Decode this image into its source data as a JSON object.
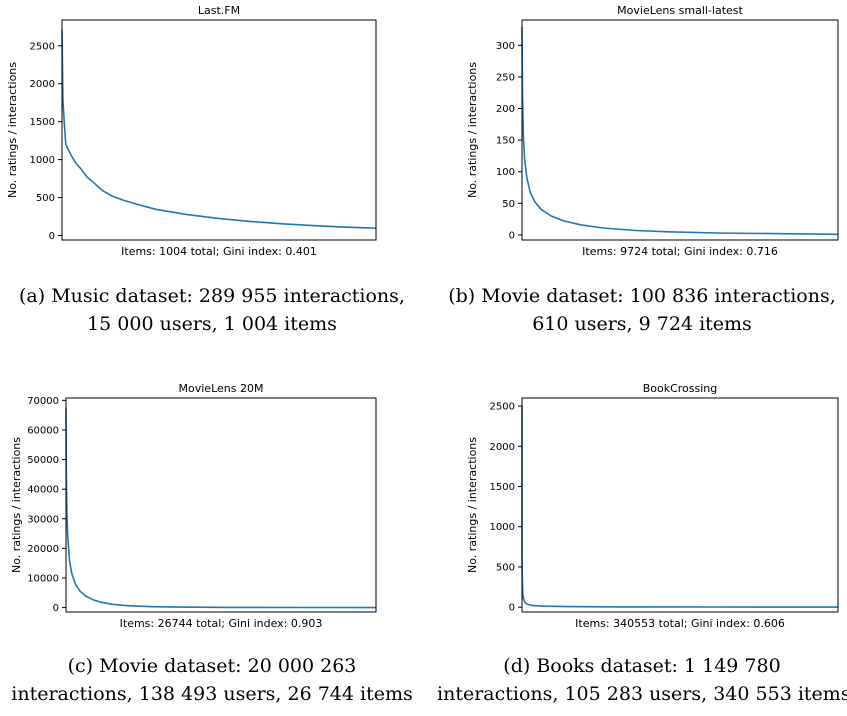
{
  "charts": [
    {
      "caption_line1": "(a) Music dataset: 289 955 interactions,",
      "caption_line2": "15 000 users, 1 004 items"
    },
    {
      "caption_line1": "(b) Movie dataset: 100 836 interactions,",
      "caption_line2": "610 users, 9 724 items"
    },
    {
      "caption_line1": "(c) Movie dataset: 20 000 263",
      "caption_line2": "interactions, 138 493 users, 26 744 items"
    },
    {
      "caption_line1": "(d) Books dataset: 1 149 780",
      "caption_line2": "interactions, 105 283 users, 340 553 items"
    }
  ],
  "chart_data": [
    {
      "type": "line",
      "title": "Last.FM",
      "xlabel": "Items: 1004 total; Gini index: 0.401",
      "ylabel": "No. ratings / interactions",
      "grid": false,
      "xlim": [
        0,
        1004
      ],
      "ylim": [
        -60,
        2840
      ],
      "yticks": [
        0,
        500,
        1000,
        1500,
        2000,
        2500
      ],
      "series": [
        {
          "color": "#1f77b4",
          "x": [
            0,
            3,
            7,
            12,
            20,
            30,
            45,
            60,
            80,
            100,
            130,
            160,
            200,
            250,
            300,
            400,
            500,
            600,
            700,
            800,
            900,
            1004
          ],
          "y": [
            2710,
            1800,
            1500,
            1200,
            1130,
            1050,
            950,
            880,
            770,
            700,
            590,
            520,
            460,
            400,
            345,
            275,
            225,
            185,
            155,
            130,
            110,
            95
          ]
        }
      ]
    },
    {
      "type": "line",
      "title": "MovieLens small-latest",
      "xlabel": "Items: 9724 total; Gini index: 0.716",
      "ylabel": "No. ratings / interactions",
      "grid": false,
      "xlim": [
        0,
        9724
      ],
      "ylim": [
        -8,
        340
      ],
      "yticks": [
        0,
        50,
        100,
        150,
        200,
        250,
        300
      ],
      "series": [
        {
          "color": "#1f77b4",
          "x": [
            0,
            15,
            40,
            80,
            150,
            250,
            400,
            600,
            900,
            1300,
            1800,
            2500,
            3500,
            4500,
            6000,
            8000,
            9724
          ],
          "y": [
            329,
            220,
            160,
            120,
            90,
            68,
            52,
            40,
            30,
            22,
            16,
            11,
            7,
            5,
            3,
            2,
            1
          ]
        }
      ]
    },
    {
      "type": "line",
      "title": "MovieLens 20M",
      "xlabel": "Items: 26744 total; Gini index: 0.903",
      "ylabel": "No. ratings / interactions",
      "grid": false,
      "xlim": [
        0,
        26744
      ],
      "ylim": [
        -1500,
        70800
      ],
      "yticks": [
        0,
        10000,
        20000,
        30000,
        40000,
        50000,
        60000,
        70000
      ],
      "series": [
        {
          "color": "#1f77b4",
          "x": [
            0,
            30,
            80,
            150,
            300,
            500,
            800,
            1200,
            1700,
            2300,
            3000,
            4000,
            5500,
            7500,
            10000,
            14000,
            20000,
            26744
          ],
          "y": [
            67300,
            45000,
            32000,
            24000,
            16000,
            11500,
            8000,
            5600,
            3900,
            2700,
            1800,
            1100,
            600,
            300,
            150,
            50,
            10,
            1
          ]
        }
      ]
    },
    {
      "type": "line",
      "title": "BookCrossing",
      "xlabel": "Items: 340553 total; Gini index: 0.606",
      "ylabel": "No. ratings / interactions",
      "grid": false,
      "xlim": [
        0,
        340553
      ],
      "ylim": [
        -60,
        2600
      ],
      "yticks": [
        0,
        500,
        1000,
        1500,
        2000,
        2500
      ],
      "series": [
        {
          "color": "#1f77b4",
          "x": [
            0,
            50,
            150,
            400,
            800,
            1500,
            3000,
            6000,
            12000,
            25000,
            50000,
            100000,
            200000,
            340553
          ],
          "y": [
            2502,
            900,
            500,
            300,
            180,
            110,
            60,
            35,
            20,
            12,
            7,
            4,
            2,
            1
          ]
        }
      ]
    }
  ]
}
